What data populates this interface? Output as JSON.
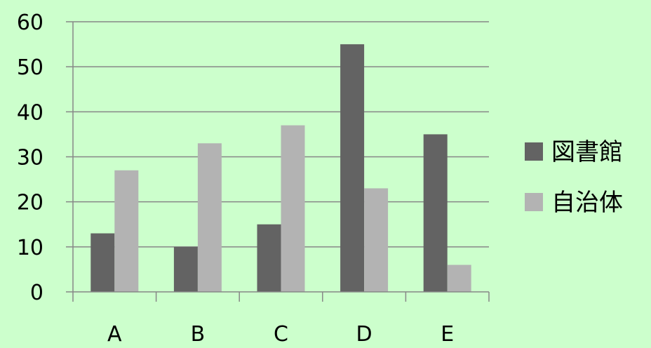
{
  "chart_data": {
    "type": "bar",
    "categories": [
      "A",
      "B",
      "C",
      "D",
      "E"
    ],
    "series": [
      {
        "name": "図書館",
        "values": [
          13,
          10,
          15,
          55,
          35
        ],
        "color": "#636363"
      },
      {
        "name": "自治体",
        "values": [
          27,
          33,
          37,
          23,
          6
        ],
        "color": "#b3b3b3"
      }
    ],
    "y_ticks": [
      "0",
      "10",
      "20",
      "30",
      "40",
      "50",
      "60"
    ],
    "ylim": [
      0,
      60
    ],
    "grid": true,
    "legend_position": "right",
    "background_color": "#ccffcc",
    "gridline_color": "#878787"
  }
}
